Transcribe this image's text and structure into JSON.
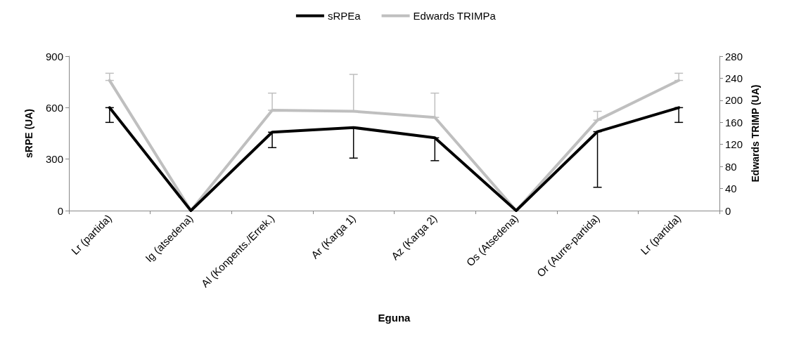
{
  "chart_data": {
    "type": "line",
    "xlabel": "Eguna",
    "ylabel": "sRPE (UA)",
    "y2label": "Edwards TRIMP (UA)",
    "categories": [
      "Lr (partida)",
      "Ig (atsedena)",
      "Al (Konpents./Errek.)",
      "Ar (Karga 1)",
      "Az (Karga 2)",
      "Os (Atsedena)",
      "Or (Aurre-partida)",
      "Lr (partida)"
    ],
    "series": [
      {
        "name": "sRPEa",
        "color": "#000000",
        "values": [
          600,
          0,
          457,
          484,
          424,
          0,
          460,
          600
        ],
        "errors": [
          [
            514,
            600
          ],
          null,
          [
            367,
            457
          ],
          [
            306,
            484
          ],
          [
            291,
            424
          ],
          null,
          [
            136,
            460
          ],
          [
            514,
            600
          ]
        ]
      },
      {
        "name": "Edwards TRIMPa",
        "color": "#bfbfbf",
        "axis": "y2",
        "values": [
          236,
          0,
          182,
          180,
          169,
          0,
          164,
          236
        ],
        "errors": [
          [
            236,
            249
          ],
          null,
          [
            182,
            213
          ],
          [
            180,
            247
          ],
          [
            169,
            213
          ],
          null,
          [
            164,
            180
          ],
          [
            236,
            249
          ]
        ]
      }
    ],
    "ylim": [
      0,
      900
    ],
    "yticks": [
      0,
      300,
      600,
      900
    ],
    "y2lim": [
      0,
      280
    ],
    "y2ticks": [
      0,
      40,
      80,
      120,
      160,
      200,
      240,
      280
    ],
    "grid": false,
    "legend": "top",
    "marker": "none",
    "line_style": "solid"
  }
}
